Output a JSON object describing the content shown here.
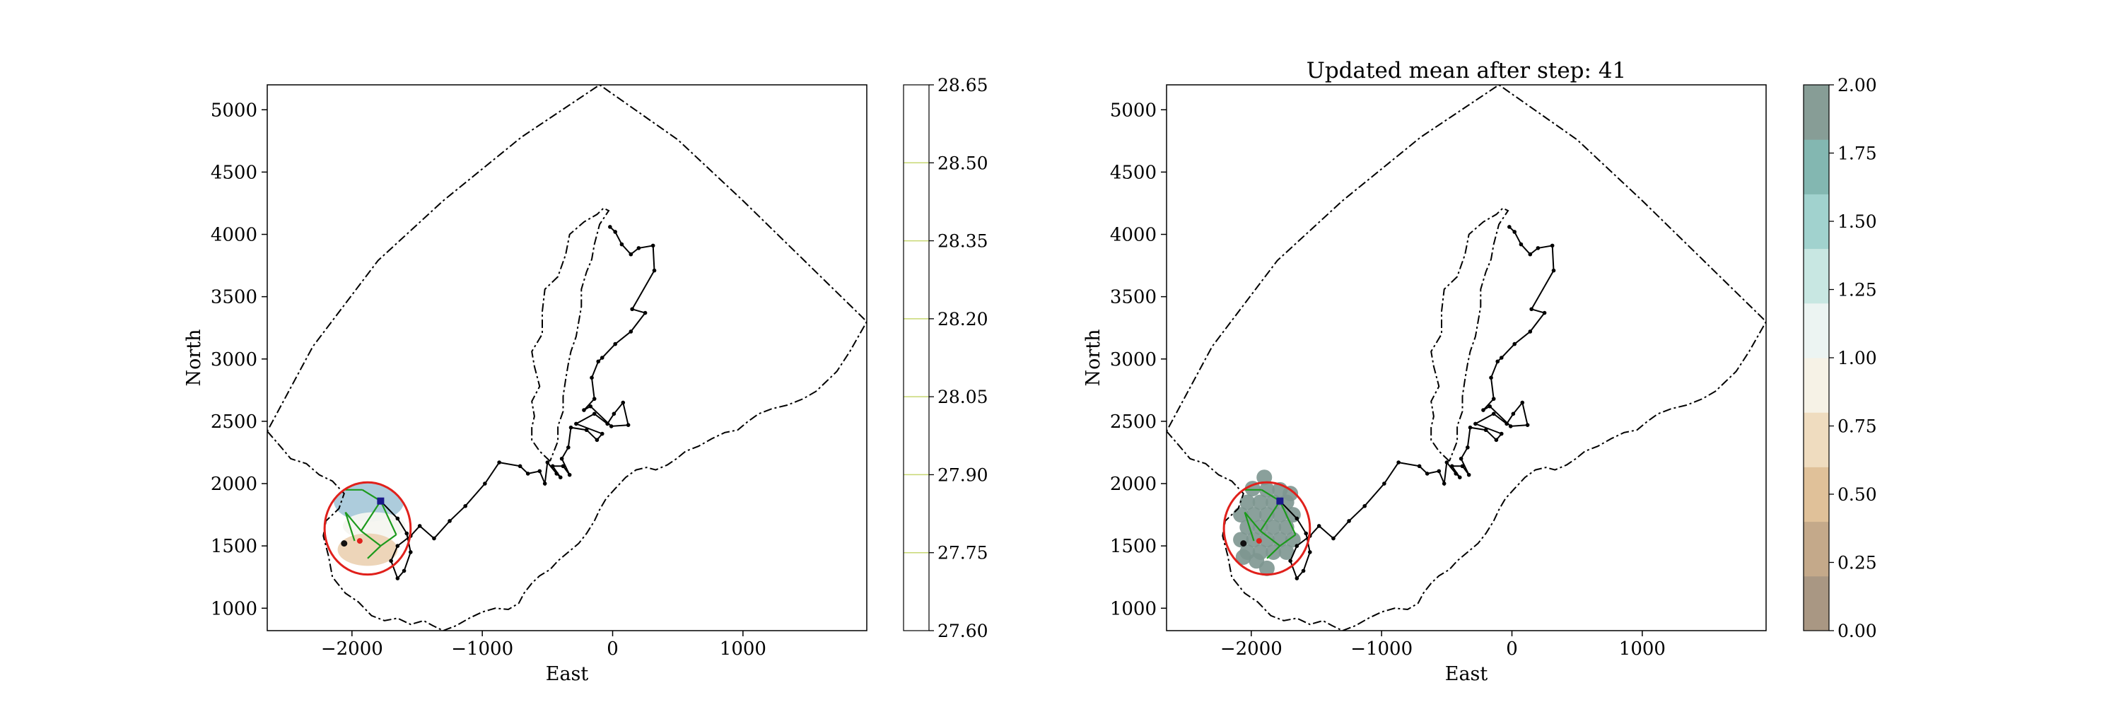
{
  "chart_data": [
    {
      "type": "contour",
      "title": "",
      "xlabel": "East",
      "ylabel": "North",
      "xlim": [
        -2650,
        1950
      ],
      "ylim": [
        820,
        5200
      ],
      "xticks": [
        -2000,
        -1000,
        0,
        1000
      ],
      "xtick_labels": [
        "−2000",
        "−1000",
        "0",
        "1000"
      ],
      "yticks": [
        1000,
        1500,
        2000,
        2500,
        3000,
        3500,
        4000,
        4500,
        5000
      ],
      "ytick_labels": [
        "1000",
        "1500",
        "2000",
        "2500",
        "3000",
        "3500",
        "4000",
        "4500",
        "5000"
      ],
      "colorbar": {
        "ticks": [
          27.6,
          27.75,
          27.9,
          28.05,
          28.2,
          28.35,
          28.5,
          28.65
        ],
        "tick_labels": [
          "27.60",
          "27.75",
          "27.90",
          "28.05",
          "28.20",
          "28.35",
          "28.50",
          "28.65"
        ],
        "range": [
          27.6,
          28.65
        ],
        "style": "contour lines",
        "line_color": "#c8d873"
      },
      "regions": [
        {
          "name": "blue",
          "color": "#a9c9da",
          "cx": -1870,
          "cy": 1860,
          "rx": 270,
          "ry": 165
        },
        {
          "name": "white",
          "color": "#f5f6f0",
          "cx": -1830,
          "cy": 1660,
          "rx": 240,
          "ry": 110
        },
        {
          "name": "tan",
          "color": "#ecd3b5",
          "cx": -1880,
          "cy": 1470,
          "rx": 230,
          "ry": 130
        }
      ]
    },
    {
      "type": "scatter",
      "title": "Updated mean after step: 41",
      "xlabel": "East",
      "ylabel": "North",
      "xlim": [
        -2650,
        1950
      ],
      "ylim": [
        820,
        5200
      ],
      "xticks": [
        -2000,
        -1000,
        0,
        1000
      ],
      "xtick_labels": [
        "−2000",
        "−1000",
        "0",
        "1000"
      ],
      "yticks": [
        1000,
        1500,
        2000,
        2500,
        3000,
        3500,
        4000,
        4500,
        5000
      ],
      "ytick_labels": [
        "1000",
        "1500",
        "2000",
        "2500",
        "3000",
        "3500",
        "4000",
        "4500",
        "5000"
      ],
      "colorbar": {
        "ticks": [
          0,
          0.25,
          0.5,
          0.75,
          1.0,
          1.25,
          1.5,
          1.75,
          2.0
        ],
        "tick_labels": [
          "0.00",
          "0.25",
          "0.50",
          "0.75",
          "1.00",
          "1.25",
          "1.50",
          "1.75",
          "2.00"
        ],
        "range": [
          0,
          2
        ],
        "bands": [
          "#a99783",
          "#c4a98a",
          "#e0c199",
          "#efdcbf",
          "#f6f2e6",
          "#ecf4f2",
          "#c8e7e2",
          "#a1d2ce",
          "#83b7b1",
          "#879d96"
        ]
      },
      "points": [
        [
          -1900,
          2050
        ],
        [
          -1990,
          1960
        ],
        [
          -1880,
          1950
        ],
        [
          -1780,
          1950
        ],
        [
          -1700,
          1920
        ],
        [
          -2030,
          1850
        ],
        [
          -1930,
          1850
        ],
        [
          -1830,
          1850
        ],
        [
          -1730,
          1850
        ],
        [
          -2080,
          1750
        ],
        [
          -1980,
          1750
        ],
        [
          -1880,
          1750
        ],
        [
          -1780,
          1750
        ],
        [
          -1680,
          1750
        ],
        [
          -2030,
          1650
        ],
        [
          -1930,
          1650
        ],
        [
          -1830,
          1650
        ],
        [
          -1730,
          1650
        ],
        [
          -2080,
          1550
        ],
        [
          -1980,
          1550
        ],
        [
          -1880,
          1550
        ],
        [
          -1780,
          1550
        ],
        [
          -1680,
          1550
        ],
        [
          -2030,
          1450
        ],
        [
          -1930,
          1450
        ],
        [
          -1830,
          1450
        ],
        [
          -1730,
          1450
        ],
        [
          -2060,
          1410
        ],
        [
          -1960,
          1380
        ],
        [
          -1880,
          1320
        ]
      ],
      "point_value": 2.0
    }
  ],
  "shared": {
    "outer_boundary": [
      [
        -2650,
        2420
      ],
      [
        -2550,
        2300
      ],
      [
        -2470,
        2200
      ],
      [
        -2350,
        2160
      ],
      [
        -2250,
        2070
      ],
      [
        -2150,
        2020
      ],
      [
        -2060,
        1920
      ],
      [
        -2100,
        1800
      ],
      [
        -2200,
        1700
      ],
      [
        -2220,
        1580
      ],
      [
        -2180,
        1420
      ],
      [
        -2150,
        1250
      ],
      [
        -2050,
        1120
      ],
      [
        -1950,
        1050
      ],
      [
        -1850,
        940
      ],
      [
        -1750,
        900
      ],
      [
        -1650,
        920
      ],
      [
        -1550,
        870
      ],
      [
        -1450,
        900
      ],
      [
        -1380,
        860
      ],
      [
        -1300,
        820
      ],
      [
        -1200,
        860
      ],
      [
        -1100,
        920
      ],
      [
        -1000,
        970
      ],
      [
        -900,
        1000
      ],
      [
        -800,
        990
      ],
      [
        -720,
        1040
      ],
      [
        -680,
        1120
      ],
      [
        -620,
        1200
      ],
      [
        -560,
        1260
      ],
      [
        -480,
        1310
      ],
      [
        -420,
        1380
      ],
      [
        -340,
        1450
      ],
      [
        -260,
        1520
      ],
      [
        -200,
        1600
      ],
      [
        -140,
        1700
      ],
      [
        -100,
        1790
      ],
      [
        -50,
        1880
      ],
      [
        20,
        1960
      ],
      [
        100,
        2050
      ],
      [
        180,
        2110
      ],
      [
        260,
        2130
      ],
      [
        330,
        2110
      ],
      [
        420,
        2150
      ],
      [
        490,
        2200
      ],
      [
        560,
        2260
      ],
      [
        660,
        2300
      ],
      [
        760,
        2360
      ],
      [
        860,
        2410
      ],
      [
        960,
        2430
      ],
      [
        1040,
        2500
      ],
      [
        1120,
        2560
      ],
      [
        1220,
        2600
      ],
      [
        1340,
        2630
      ],
      [
        1460,
        2680
      ],
      [
        1560,
        2740
      ],
      [
        1640,
        2820
      ],
      [
        1720,
        2900
      ],
      [
        1820,
        3060
      ],
      [
        1950,
        3300
      ],
      [
        1500,
        3760
      ],
      [
        1000,
        4270
      ],
      [
        500,
        4760
      ],
      [
        -100,
        5200
      ],
      [
        -700,
        4780
      ],
      [
        -1300,
        4270
      ],
      [
        -1800,
        3790
      ],
      [
        -2300,
        3100
      ],
      [
        -2650,
        2420
      ]
    ],
    "inner_boundary": [
      [
        -480,
        2180
      ],
      [
        -560,
        2260
      ],
      [
        -620,
        2350
      ],
      [
        -620,
        2450
      ],
      [
        -600,
        2540
      ],
      [
        -620,
        2660
      ],
      [
        -560,
        2780
      ],
      [
        -600,
        2940
      ],
      [
        -620,
        3060
      ],
      [
        -540,
        3200
      ],
      [
        -540,
        3380
      ],
      [
        -520,
        3560
      ],
      [
        -420,
        3660
      ],
      [
        -360,
        3840
      ],
      [
        -330,
        4000
      ],
      [
        -220,
        4100
      ],
      [
        -120,
        4160
      ],
      [
        -70,
        4210
      ],
      [
        -30,
        4190
      ],
      [
        -100,
        4080
      ],
      [
        -140,
        3920
      ],
      [
        -160,
        3800
      ],
      [
        -200,
        3700
      ],
      [
        -240,
        3560
      ],
      [
        -240,
        3420
      ],
      [
        -260,
        3300
      ],
      [
        -280,
        3180
      ],
      [
        -320,
        3060
      ],
      [
        -340,
        2960
      ],
      [
        -360,
        2840
      ],
      [
        -380,
        2700
      ],
      [
        -380,
        2580
      ],
      [
        -420,
        2460
      ],
      [
        -420,
        2340
      ],
      [
        -480,
        2180
      ]
    ],
    "path": [
      [
        -1780,
        1860
      ],
      [
        -1650,
        1720
      ],
      [
        -1580,
        1600
      ],
      [
        -1550,
        1450
      ],
      [
        -1600,
        1300
      ],
      [
        -1650,
        1240
      ],
      [
        -1700,
        1380
      ],
      [
        -1650,
        1500
      ],
      [
        -1550,
        1580
      ],
      [
        -1480,
        1660
      ],
      [
        -1370,
        1560
      ],
      [
        -1250,
        1700
      ],
      [
        -1130,
        1820
      ],
      [
        -980,
        2000
      ],
      [
        -870,
        2170
      ],
      [
        -710,
        2140
      ],
      [
        -650,
        2080
      ],
      [
        -560,
        2100
      ],
      [
        -520,
        2000
      ],
      [
        -500,
        2170
      ],
      [
        -430,
        2080
      ],
      [
        -400,
        2050
      ],
      [
        -460,
        2140
      ],
      [
        -380,
        2140
      ],
      [
        -330,
        2070
      ],
      [
        -390,
        2200
      ],
      [
        -340,
        2290
      ],
      [
        -320,
        2450
      ],
      [
        -200,
        2430
      ],
      [
        -120,
        2350
      ],
      [
        -80,
        2400
      ],
      [
        -280,
        2480
      ],
      [
        -140,
        2560
      ],
      [
        -40,
        2480
      ],
      [
        10,
        2560
      ],
      [
        80,
        2650
      ],
      [
        120,
        2470
      ],
      [
        -10,
        2460
      ],
      [
        -170,
        2620
      ],
      [
        -220,
        2590
      ],
      [
        -140,
        2680
      ],
      [
        -160,
        2850
      ],
      [
        -110,
        2980
      ],
      [
        -80,
        3010
      ],
      [
        20,
        3120
      ],
      [
        140,
        3220
      ],
      [
        250,
        3370
      ],
      [
        150,
        3400
      ],
      [
        320,
        3710
      ],
      [
        310,
        3910
      ],
      [
        200,
        3890
      ],
      [
        140,
        3840
      ],
      [
        70,
        3920
      ],
      [
        20,
        4020
      ],
      [
        -20,
        4060
      ]
    ],
    "start_point": [
      -1780,
      1860
    ],
    "secondary_point": [
      -1940,
      1540
    ],
    "dark_point": [
      -2060,
      1520
    ],
    "red_circle": {
      "cx": -1880,
      "cy": 1640,
      "rx": 330,
      "ry": 370
    },
    "green_links": [
      [
        [
          -1780,
          1860
        ],
        [
          -1930,
          1620
        ]
      ],
      [
        [
          -1780,
          1860
        ],
        [
          -1660,
          1590
        ]
      ],
      [
        [
          -1780,
          1860
        ],
        [
          -1920,
          1950
        ]
      ],
      [
        [
          -1930,
          1620
        ],
        [
          -2050,
          1770
        ]
      ],
      [
        [
          -1930,
          1620
        ],
        [
          -1780,
          1500
        ]
      ],
      [
        [
          -1660,
          1590
        ],
        [
          -1780,
          1500
        ]
      ],
      [
        [
          -1780,
          1500
        ],
        [
          -1880,
          1400
        ]
      ],
      [
        [
          -1920,
          1950
        ],
        [
          -2050,
          1950
        ]
      ],
      [
        [
          -2050,
          1770
        ],
        [
          -1980,
          1540
        ]
      ]
    ]
  }
}
